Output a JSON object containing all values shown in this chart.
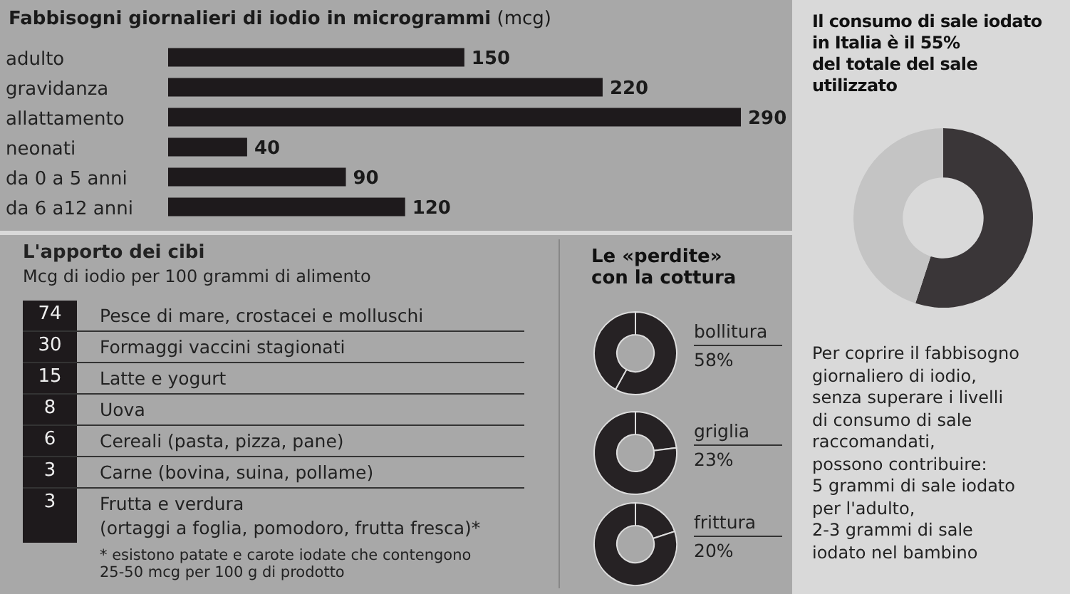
{
  "chart_data": [
    {
      "type": "bar",
      "orientation": "horizontal",
      "title": "Fabbisogni giornalieri di iodio in microgrammi",
      "subtitle": "(mcg)",
      "categories": [
        "adulto",
        "gravidanza",
        "allattamento",
        "neonati",
        "da 0 a 5 anni",
        "da 6 a12 anni"
      ],
      "values": [
        150,
        220,
        290,
        40,
        90,
        120
      ],
      "color": "#1e1a1c",
      "data_labels": true
    },
    {
      "type": "other",
      "title": "L'apporto dei cibi",
      "subtitle": "Mcg di iodio per 100 grammi di alimento",
      "categories": [
        "Pesce di mare, crostacei e molluschi",
        "Formaggi vaccini stagionati",
        "Latte e yogurt",
        "Uova",
        "Cereali (pasta, pizza, pane)",
        "Carne (bovina, suina, pollame)",
        "Frutta e verdura\n(ortaggi a foglia, pomodoro, frutta fresca)*"
      ],
      "values": [
        74,
        30,
        15,
        8,
        6,
        3,
        3
      ],
      "color": "#1e1a1c",
      "data_labels": true,
      "annotations": [
        "* esistono patate e carote iodate che contengono\n25-50 mcg per 100 g di prodotto"
      ]
    },
    {
      "type": "donut",
      "title": "Le «perdite»\ncon la cottura",
      "categories": [
        "bollitura",
        null
      ],
      "values": [
        58,
        42
      ],
      "colors": [
        "#262224",
        "#262224"
      ],
      "value_labels": [
        "58%",
        null
      ]
    },
    {
      "type": "donut",
      "categories": [
        "griglia",
        null
      ],
      "values": [
        23,
        77
      ],
      "colors": [
        "#262224",
        "#262224"
      ],
      "value_labels": [
        "23%",
        null
      ]
    },
    {
      "type": "donut",
      "categories": [
        "frittura",
        null
      ],
      "values": [
        20,
        80
      ],
      "colors": [
        "#262224",
        "#262224"
      ],
      "value_labels": [
        "20%",
        null
      ]
    },
    {
      "type": "donut",
      "title": "Il consumo di sale iodato\nin Italia è il 55%\ndel totale del sale\nutilizzato",
      "categories": [
        null,
        null
      ],
      "values": [
        55,
        45
      ],
      "colors": [
        "#3a3638",
        "#c4c4c4"
      ],
      "annotations": [
        "Per coprire il fabbisogno\ngiornaliero di iodio,\nsenza superare i livelli\ndi consumo di sale\nraccomandati,\npossono contribuire:\n5 grammi di sale iodato\nper l'adulto,\n2-3 grammi di sale\niodato nel bambino"
      ]
    }
  ]
}
